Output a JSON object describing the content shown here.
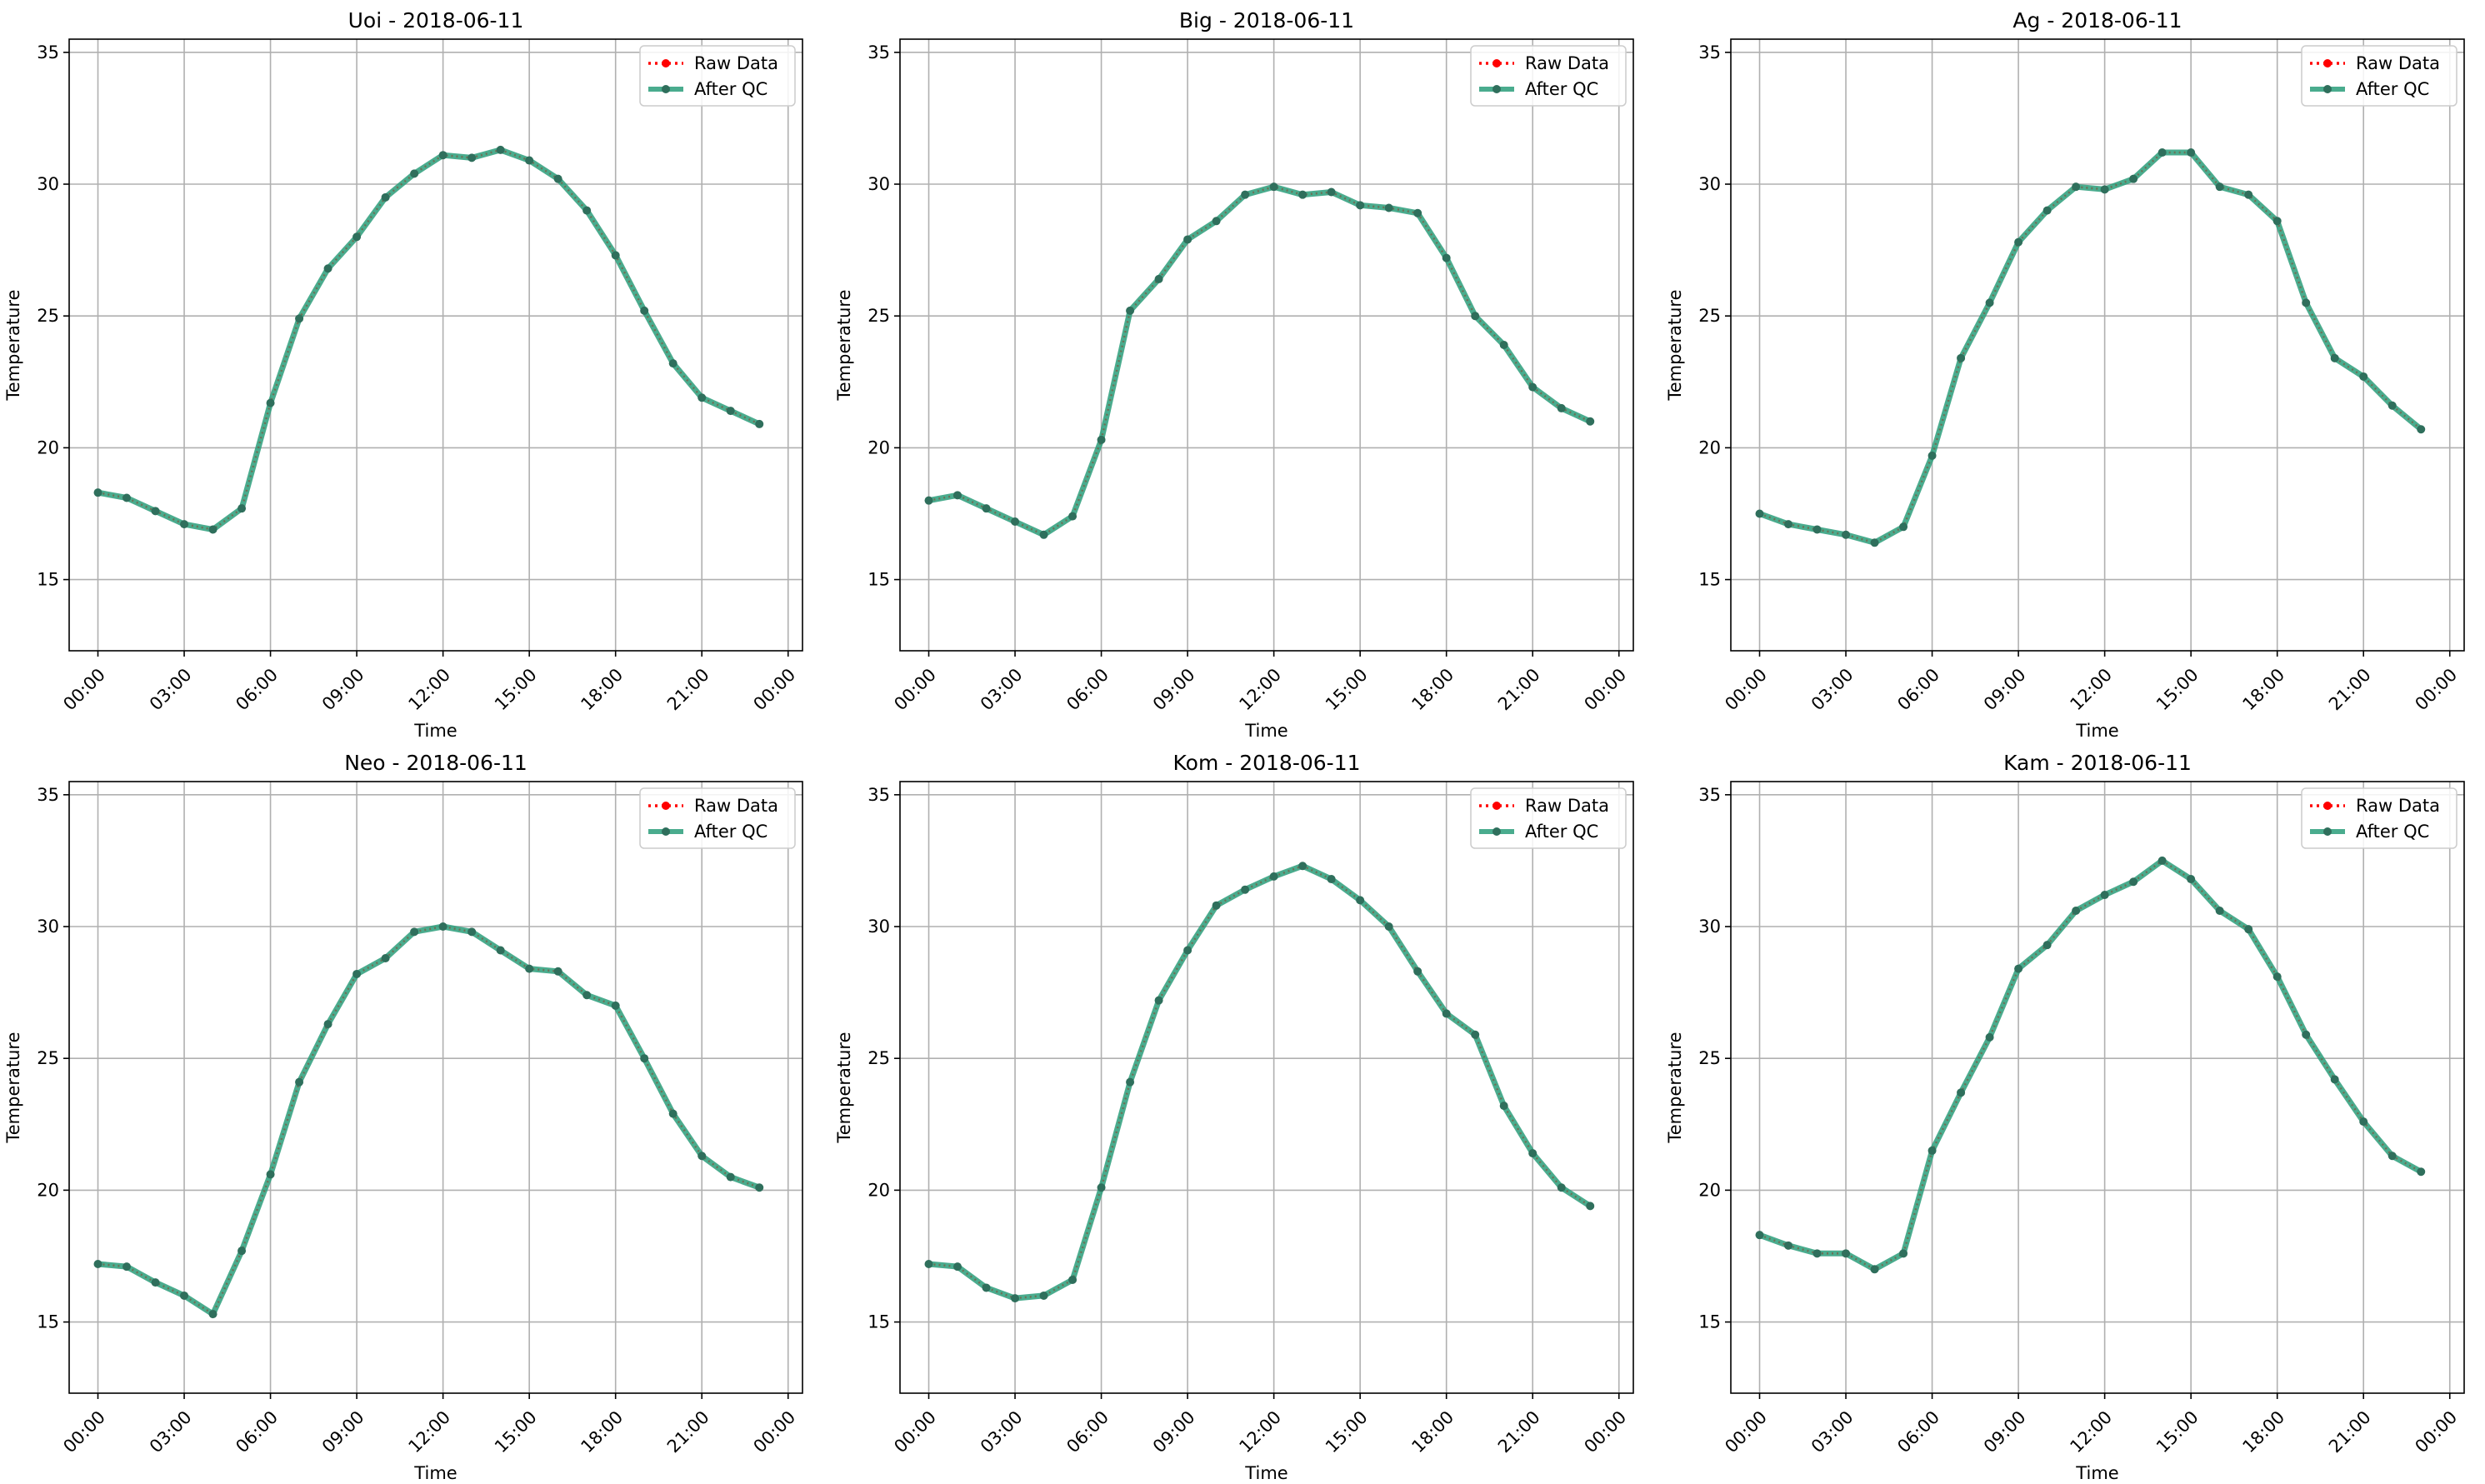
{
  "figure": {
    "background": "#ffffff"
  },
  "chart_data": [
    {
      "type": "line",
      "title": "Uoi - 2018-06-11",
      "xlabel": "Time",
      "ylabel": "Temperature",
      "xlim": [
        "2018-06-10 23:00",
        "2018-06-12 00:30"
      ],
      "ylim": [
        12.3,
        35.5
      ],
      "grid": true,
      "legend_position": "upper right",
      "x_ticks": [
        "00:00",
        "03:00",
        "06:00",
        "09:00",
        "12:00",
        "15:00",
        "18:00",
        "21:00",
        "00:00"
      ],
      "y_ticks": [
        15,
        20,
        25,
        30,
        35
      ],
      "x": [
        "00:00",
        "01:00",
        "02:00",
        "03:00",
        "04:00",
        "05:00",
        "06:00",
        "07:00",
        "08:00",
        "09:00",
        "10:00",
        "11:00",
        "12:00",
        "13:00",
        "14:00",
        "15:00",
        "16:00",
        "17:00",
        "18:00",
        "19:00",
        "20:00",
        "21:00",
        "22:00",
        "23:00"
      ],
      "series": [
        {
          "name": "Raw Data",
          "color": "#ff0000",
          "style": "dotted",
          "values": [
            18.3,
            18.1,
            17.6,
            17.1,
            16.9,
            17.7,
            21.7,
            24.9,
            26.8,
            28.0,
            29.5,
            30.4,
            31.1,
            31.0,
            31.3,
            30.9,
            30.2,
            29.0,
            27.3,
            25.2,
            23.2,
            21.9,
            21.4,
            20.9
          ]
        },
        {
          "name": "After QC",
          "color": "#2a9d7a",
          "style": "solid",
          "values": [
            18.3,
            18.1,
            17.6,
            17.1,
            16.9,
            17.7,
            21.7,
            24.9,
            26.8,
            28.0,
            29.5,
            30.4,
            31.1,
            31.0,
            31.3,
            30.9,
            30.2,
            29.0,
            27.3,
            25.2,
            23.2,
            21.9,
            21.4,
            20.9
          ]
        }
      ]
    },
    {
      "type": "line",
      "title": "Big - 2018-06-11",
      "xlabel": "Time",
      "ylabel": "Temperature",
      "xlim": [
        "2018-06-10 23:00",
        "2018-06-12 00:30"
      ],
      "ylim": [
        12.3,
        35.5
      ],
      "grid": true,
      "legend_position": "upper right",
      "x_ticks": [
        "00:00",
        "03:00",
        "06:00",
        "09:00",
        "12:00",
        "15:00",
        "18:00",
        "21:00",
        "00:00"
      ],
      "y_ticks": [
        15,
        20,
        25,
        30,
        35
      ],
      "x": [
        "00:00",
        "01:00",
        "02:00",
        "03:00",
        "04:00",
        "05:00",
        "06:00",
        "07:00",
        "08:00",
        "09:00",
        "10:00",
        "11:00",
        "12:00",
        "13:00",
        "14:00",
        "15:00",
        "16:00",
        "17:00",
        "18:00",
        "19:00",
        "20:00",
        "21:00",
        "22:00",
        "23:00"
      ],
      "series": [
        {
          "name": "Raw Data",
          "color": "#ff0000",
          "style": "dotted",
          "values": [
            18.0,
            18.2,
            17.7,
            17.2,
            16.7,
            17.4,
            20.3,
            25.2,
            26.4,
            27.9,
            28.6,
            29.6,
            29.9,
            29.6,
            29.7,
            29.2,
            29.1,
            28.9,
            27.2,
            25.0,
            23.9,
            22.3,
            21.5,
            21.0
          ]
        },
        {
          "name": "After QC",
          "color": "#2a9d7a",
          "style": "solid",
          "values": [
            18.0,
            18.2,
            17.7,
            17.2,
            16.7,
            17.4,
            20.3,
            25.2,
            26.4,
            27.9,
            28.6,
            29.6,
            29.9,
            29.6,
            29.7,
            29.2,
            29.1,
            28.9,
            27.2,
            25.0,
            23.9,
            22.3,
            21.5,
            21.0
          ]
        }
      ]
    },
    {
      "type": "line",
      "title": "Ag - 2018-06-11",
      "xlabel": "Time",
      "ylabel": "Temperature",
      "xlim": [
        "2018-06-10 23:00",
        "2018-06-12 00:30"
      ],
      "ylim": [
        12.3,
        35.5
      ],
      "grid": true,
      "legend_position": "upper right",
      "x_ticks": [
        "00:00",
        "03:00",
        "06:00",
        "09:00",
        "12:00",
        "15:00",
        "18:00",
        "21:00",
        "00:00"
      ],
      "y_ticks": [
        15,
        20,
        25,
        30,
        35
      ],
      "x": [
        "00:00",
        "01:00",
        "02:00",
        "03:00",
        "04:00",
        "05:00",
        "06:00",
        "07:00",
        "08:00",
        "09:00",
        "10:00",
        "11:00",
        "12:00",
        "13:00",
        "14:00",
        "15:00",
        "16:00",
        "17:00",
        "18:00",
        "19:00",
        "20:00",
        "21:00",
        "22:00",
        "23:00"
      ],
      "series": [
        {
          "name": "Raw Data",
          "color": "#ff0000",
          "style": "dotted",
          "values": [
            17.5,
            17.1,
            16.9,
            16.7,
            16.4,
            17.0,
            19.7,
            23.4,
            25.5,
            27.8,
            29.0,
            29.9,
            29.8,
            30.2,
            31.2,
            31.2,
            29.9,
            29.6,
            28.6,
            25.5,
            23.4,
            22.7,
            21.6,
            20.7
          ]
        },
        {
          "name": "After QC",
          "color": "#2a9d7a",
          "style": "solid",
          "values": [
            17.5,
            17.1,
            16.9,
            16.7,
            16.4,
            17.0,
            19.7,
            23.4,
            25.5,
            27.8,
            29.0,
            29.9,
            29.8,
            30.2,
            31.2,
            31.2,
            29.9,
            29.6,
            28.6,
            25.5,
            23.4,
            22.7,
            21.6,
            20.7
          ]
        }
      ]
    },
    {
      "type": "line",
      "title": "Neo - 2018-06-11",
      "xlabel": "Time",
      "ylabel": "Temperature",
      "xlim": [
        "2018-06-10 23:00",
        "2018-06-12 00:30"
      ],
      "ylim": [
        12.3,
        35.5
      ],
      "grid": true,
      "legend_position": "upper right",
      "x_ticks": [
        "00:00",
        "03:00",
        "06:00",
        "09:00",
        "12:00",
        "15:00",
        "18:00",
        "21:00",
        "00:00"
      ],
      "y_ticks": [
        15,
        20,
        25,
        30,
        35
      ],
      "x": [
        "00:00",
        "01:00",
        "02:00",
        "03:00",
        "04:00",
        "05:00",
        "06:00",
        "07:00",
        "08:00",
        "09:00",
        "10:00",
        "11:00",
        "12:00",
        "13:00",
        "14:00",
        "15:00",
        "16:00",
        "17:00",
        "18:00",
        "19:00",
        "20:00",
        "21:00",
        "22:00",
        "23:00"
      ],
      "series": [
        {
          "name": "Raw Data",
          "color": "#ff0000",
          "style": "dotted",
          "values": [
            17.2,
            17.1,
            16.5,
            16.0,
            15.3,
            17.7,
            20.6,
            24.1,
            26.3,
            28.2,
            28.8,
            29.8,
            30.0,
            29.8,
            29.1,
            28.4,
            28.3,
            27.4,
            27.0,
            25.0,
            22.9,
            21.3,
            20.5,
            20.1
          ]
        },
        {
          "name": "After QC",
          "color": "#2a9d7a",
          "style": "solid",
          "values": [
            17.2,
            17.1,
            16.5,
            16.0,
            15.3,
            17.7,
            20.6,
            24.1,
            26.3,
            28.2,
            28.8,
            29.8,
            30.0,
            29.8,
            29.1,
            28.4,
            28.3,
            27.4,
            27.0,
            25.0,
            22.9,
            21.3,
            20.5,
            20.1
          ]
        }
      ]
    },
    {
      "type": "line",
      "title": "Kom - 2018-06-11",
      "xlabel": "Time",
      "ylabel": "Temperature",
      "xlim": [
        "2018-06-10 23:00",
        "2018-06-12 00:30"
      ],
      "ylim": [
        12.3,
        35.5
      ],
      "grid": true,
      "legend_position": "upper right",
      "x_ticks": [
        "00:00",
        "03:00",
        "06:00",
        "09:00",
        "12:00",
        "15:00",
        "18:00",
        "21:00",
        "00:00"
      ],
      "y_ticks": [
        15,
        20,
        25,
        30,
        35
      ],
      "x": [
        "00:00",
        "01:00",
        "02:00",
        "03:00",
        "04:00",
        "05:00",
        "06:00",
        "07:00",
        "08:00",
        "09:00",
        "10:00",
        "11:00",
        "12:00",
        "13:00",
        "14:00",
        "15:00",
        "16:00",
        "17:00",
        "18:00",
        "19:00",
        "20:00",
        "21:00",
        "22:00",
        "23:00"
      ],
      "series": [
        {
          "name": "Raw Data",
          "color": "#ff0000",
          "style": "dotted",
          "values": [
            17.2,
            17.1,
            16.3,
            15.9,
            16.0,
            16.6,
            20.1,
            24.1,
            27.2,
            29.1,
            30.8,
            31.4,
            31.9,
            32.3,
            31.8,
            31.0,
            30.0,
            28.3,
            26.7,
            25.9,
            23.2,
            21.4,
            20.1,
            19.4
          ]
        },
        {
          "name": "After QC",
          "color": "#2a9d7a",
          "style": "solid",
          "values": [
            17.2,
            17.1,
            16.3,
            15.9,
            16.0,
            16.6,
            20.1,
            24.1,
            27.2,
            29.1,
            30.8,
            31.4,
            31.9,
            32.3,
            31.8,
            31.0,
            30.0,
            28.3,
            26.7,
            25.9,
            23.2,
            21.4,
            20.1,
            19.4
          ]
        }
      ]
    },
    {
      "type": "line",
      "title": "Kam - 2018-06-11",
      "xlabel": "Time",
      "ylabel": "Temperature",
      "xlim": [
        "2018-06-10 23:00",
        "2018-06-12 00:30"
      ],
      "ylim": [
        12.3,
        35.5
      ],
      "grid": true,
      "legend_position": "upper right",
      "x_ticks": [
        "00:00",
        "03:00",
        "06:00",
        "09:00",
        "12:00",
        "15:00",
        "18:00",
        "21:00",
        "00:00"
      ],
      "y_ticks": [
        15,
        20,
        25,
        30,
        35
      ],
      "x": [
        "00:00",
        "01:00",
        "02:00",
        "03:00",
        "04:00",
        "05:00",
        "06:00",
        "07:00",
        "08:00",
        "09:00",
        "10:00",
        "11:00",
        "12:00",
        "13:00",
        "14:00",
        "15:00",
        "16:00",
        "17:00",
        "18:00",
        "19:00",
        "20:00",
        "21:00",
        "22:00",
        "23:00"
      ],
      "series": [
        {
          "name": "Raw Data",
          "color": "#ff0000",
          "style": "dotted",
          "values": [
            18.3,
            17.9,
            17.6,
            17.6,
            17.0,
            17.6,
            21.5,
            23.7,
            25.8,
            28.4,
            29.3,
            30.6,
            31.2,
            31.7,
            32.5,
            31.8,
            30.6,
            29.9,
            28.1,
            25.9,
            24.2,
            22.6,
            21.3,
            20.7
          ]
        },
        {
          "name": "After QC",
          "color": "#2a9d7a",
          "style": "solid",
          "values": [
            18.3,
            17.9,
            17.6,
            17.6,
            17.0,
            17.6,
            21.5,
            23.7,
            25.8,
            28.4,
            29.3,
            30.6,
            31.2,
            31.7,
            32.5,
            31.8,
            30.6,
            29.9,
            28.1,
            25.9,
            24.2,
            22.6,
            21.3,
            20.7
          ]
        }
      ]
    }
  ]
}
